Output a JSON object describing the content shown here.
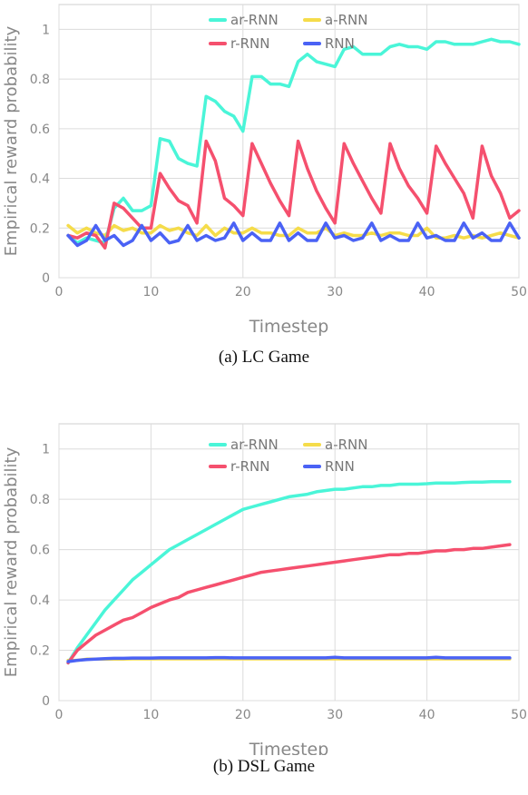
{
  "chart_data": [
    {
      "type": "line",
      "caption": "(a) LC Game",
      "xlabel": "Timestep",
      "ylabel": "Empirical reward probability",
      "xlim": [
        0,
        50
      ],
      "ylim": [
        0,
        1.1
      ],
      "x_ticks": [
        0,
        10,
        20,
        30,
        40,
        50
      ],
      "y_ticks": [
        0,
        0.2,
        0.4,
        0.6,
        0.8,
        1
      ],
      "y_tick_labels": [
        "0",
        "0.2",
        "0.4",
        "0.6",
        "0.8",
        "1"
      ],
      "grid": true,
      "legend_position": "top-center",
      "x": [
        1,
        2,
        3,
        4,
        5,
        6,
        7,
        8,
        9,
        10,
        11,
        12,
        13,
        14,
        15,
        16,
        17,
        18,
        19,
        20,
        21,
        22,
        23,
        24,
        25,
        26,
        27,
        28,
        29,
        30,
        31,
        32,
        33,
        34,
        35,
        36,
        37,
        38,
        39,
        40,
        41,
        42,
        43,
        44,
        45,
        46,
        47,
        48,
        49,
        50
      ],
      "series": [
        {
          "name": "ar-RNN",
          "color": "#4af5d8",
          "values": [
            0.17,
            0.14,
            0.16,
            0.15,
            0.14,
            0.28,
            0.32,
            0.27,
            0.27,
            0.29,
            0.56,
            0.55,
            0.48,
            0.46,
            0.45,
            0.73,
            0.71,
            0.67,
            0.65,
            0.59,
            0.81,
            0.81,
            0.78,
            0.78,
            0.77,
            0.87,
            0.9,
            0.87,
            0.86,
            0.85,
            0.92,
            0.93,
            0.9,
            0.9,
            0.9,
            0.93,
            0.94,
            0.93,
            0.93,
            0.92,
            0.95,
            0.95,
            0.94,
            0.94,
            0.94,
            0.95,
            0.96,
            0.95,
            0.95,
            0.94
          ]
        },
        {
          "name": "a-RNN",
          "color": "#f5dc4a",
          "values": [
            0.21,
            0.18,
            0.2,
            0.18,
            0.17,
            0.21,
            0.19,
            0.2,
            0.18,
            0.18,
            0.21,
            0.19,
            0.2,
            0.18,
            0.17,
            0.21,
            0.17,
            0.2,
            0.18,
            0.18,
            0.2,
            0.18,
            0.18,
            0.17,
            0.17,
            0.2,
            0.18,
            0.18,
            0.2,
            0.17,
            0.18,
            0.17,
            0.17,
            0.18,
            0.17,
            0.18,
            0.18,
            0.17,
            0.17,
            0.2,
            0.16,
            0.16,
            0.17,
            0.16,
            0.17,
            0.16,
            0.17,
            0.18,
            0.17,
            0.16
          ]
        },
        {
          "name": "r-RNN",
          "color": "#f5506e",
          "values": [
            0.17,
            0.16,
            0.18,
            0.17,
            0.12,
            0.3,
            0.28,
            0.24,
            0.2,
            0.2,
            0.42,
            0.36,
            0.31,
            0.29,
            0.22,
            0.55,
            0.47,
            0.32,
            0.29,
            0.25,
            0.54,
            0.46,
            0.38,
            0.31,
            0.25,
            0.55,
            0.44,
            0.35,
            0.28,
            0.22,
            0.54,
            0.46,
            0.39,
            0.32,
            0.26,
            0.54,
            0.44,
            0.37,
            0.32,
            0.26,
            0.53,
            0.46,
            0.4,
            0.34,
            0.24,
            0.53,
            0.41,
            0.34,
            0.24,
            0.27
          ]
        },
        {
          "name": "RNN",
          "color": "#4a62f5",
          "values": [
            0.17,
            0.13,
            0.15,
            0.21,
            0.15,
            0.17,
            0.13,
            0.15,
            0.21,
            0.15,
            0.18,
            0.14,
            0.15,
            0.21,
            0.15,
            0.17,
            0.15,
            0.16,
            0.22,
            0.15,
            0.18,
            0.15,
            0.15,
            0.22,
            0.15,
            0.18,
            0.15,
            0.15,
            0.22,
            0.16,
            0.17,
            0.15,
            0.16,
            0.22,
            0.15,
            0.17,
            0.15,
            0.15,
            0.22,
            0.16,
            0.17,
            0.15,
            0.15,
            0.22,
            0.16,
            0.18,
            0.15,
            0.15,
            0.22,
            0.16
          ]
        }
      ]
    },
    {
      "type": "line",
      "caption": "(b) DSL Game",
      "xlabel": "Timestep",
      "ylabel": "Empirical reward probability",
      "xlim": [
        0,
        50
      ],
      "ylim": [
        0,
        1.1
      ],
      "x_ticks": [
        0,
        10,
        20,
        30,
        40,
        50
      ],
      "y_ticks": [
        0,
        0.2,
        0.4,
        0.6,
        0.8,
        1
      ],
      "y_tick_labels": [
        "0",
        "0.2",
        "0.4",
        "0.6",
        "0.8",
        "1"
      ],
      "grid": true,
      "legend_position": "top-center",
      "x": [
        1,
        2,
        3,
        4,
        5,
        6,
        7,
        8,
        9,
        10,
        11,
        12,
        13,
        14,
        15,
        16,
        17,
        18,
        19,
        20,
        21,
        22,
        23,
        24,
        25,
        26,
        27,
        28,
        29,
        30,
        31,
        32,
        33,
        34,
        35,
        36,
        37,
        38,
        39,
        40,
        41,
        42,
        43,
        44,
        45,
        46,
        47,
        48,
        49
      ],
      "series": [
        {
          "name": "ar-RNN",
          "color": "#4af5d8",
          "values": [
            0.15,
            0.21,
            0.26,
            0.31,
            0.36,
            0.4,
            0.44,
            0.48,
            0.51,
            0.54,
            0.57,
            0.6,
            0.62,
            0.64,
            0.66,
            0.68,
            0.7,
            0.72,
            0.74,
            0.76,
            0.77,
            0.78,
            0.79,
            0.8,
            0.81,
            0.815,
            0.82,
            0.83,
            0.835,
            0.84,
            0.84,
            0.845,
            0.85,
            0.85,
            0.855,
            0.855,
            0.86,
            0.86,
            0.86,
            0.862,
            0.865,
            0.865,
            0.865,
            0.867,
            0.868,
            0.868,
            0.87,
            0.87,
            0.87
          ]
        },
        {
          "name": "a-RNN",
          "color": "#f5dc4a",
          "values": [
            0.16,
            0.16,
            0.165,
            0.165,
            0.165,
            0.165,
            0.165,
            0.166,
            0.166,
            0.166,
            0.166,
            0.166,
            0.166,
            0.166,
            0.166,
            0.166,
            0.166,
            0.166,
            0.166,
            0.166,
            0.166,
            0.166,
            0.166,
            0.166,
            0.166,
            0.166,
            0.166,
            0.166,
            0.166,
            0.166,
            0.166,
            0.166,
            0.166,
            0.166,
            0.166,
            0.166,
            0.166,
            0.166,
            0.166,
            0.166,
            0.166,
            0.166,
            0.166,
            0.166,
            0.166,
            0.166,
            0.166,
            0.166,
            0.166
          ]
        },
        {
          "name": "r-RNN",
          "color": "#f5506e",
          "values": [
            0.15,
            0.2,
            0.23,
            0.26,
            0.28,
            0.3,
            0.32,
            0.33,
            0.35,
            0.37,
            0.385,
            0.4,
            0.41,
            0.43,
            0.44,
            0.45,
            0.46,
            0.47,
            0.48,
            0.49,
            0.5,
            0.51,
            0.515,
            0.52,
            0.525,
            0.53,
            0.535,
            0.54,
            0.545,
            0.55,
            0.555,
            0.56,
            0.565,
            0.57,
            0.575,
            0.58,
            0.58,
            0.585,
            0.585,
            0.59,
            0.595,
            0.595,
            0.6,
            0.6,
            0.605,
            0.605,
            0.61,
            0.615,
            0.62
          ]
        },
        {
          "name": "RNN",
          "color": "#4a62f5",
          "values": [
            0.155,
            0.16,
            0.163,
            0.165,
            0.167,
            0.168,
            0.168,
            0.169,
            0.169,
            0.169,
            0.17,
            0.17,
            0.17,
            0.17,
            0.17,
            0.17,
            0.171,
            0.171,
            0.17,
            0.17,
            0.17,
            0.17,
            0.17,
            0.17,
            0.17,
            0.17,
            0.17,
            0.17,
            0.17,
            0.172,
            0.17,
            0.17,
            0.17,
            0.17,
            0.17,
            0.17,
            0.17,
            0.17,
            0.17,
            0.17,
            0.172,
            0.17,
            0.17,
            0.17,
            0.17,
            0.17,
            0.17,
            0.17,
            0.17
          ]
        }
      ]
    }
  ]
}
